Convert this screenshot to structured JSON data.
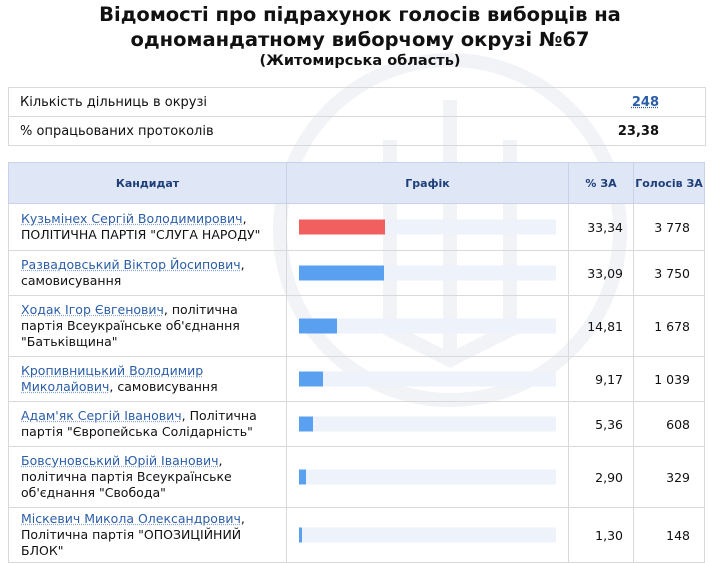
{
  "header": {
    "title": "Відомості про підрахунок голосів виборців на одномандатному виборчому окрузі №67",
    "region": "(Житомирська область)"
  },
  "summary": {
    "stations_label": "Кількість дільниць в окрузі",
    "stations_value": "248",
    "processed_label": "% опрацьованих протоколів",
    "processed_value": "23,38"
  },
  "table": {
    "headers": {
      "candidate": "Кандидат",
      "graph": "Графік",
      "percent": "% ЗА",
      "votes": "Голосів ЗА"
    },
    "rows": [
      {
        "name": "Кузьмінех Сергій Володимирович",
        "party": ", ПОЛІТИЧНА ПАРТІЯ \"СЛУГА НАРОДУ\"",
        "percent": "33,34",
        "votes": "3 778"
      },
      {
        "name": "Развадовський Віктор Йосипович",
        "party": ", самовисування",
        "percent": "33,09",
        "votes": "3 750"
      },
      {
        "name": "Ходак Ігор Євгенович",
        "party": ", політична партія Всеукраїнське об'єднання \"Батьківщина\"",
        "percent": "14,81",
        "votes": "1 678"
      },
      {
        "name": "Кропивницький Володимир Миколайович",
        "party": ", самовисування",
        "percent": "9,17",
        "votes": "1 039"
      },
      {
        "name": "Адам'як Сергій Іванович",
        "party": ", Політична партія \"Європейська Солідарність\"",
        "percent": "5,36",
        "votes": "608"
      },
      {
        "name": "Бовсуновський Юрій Іванович",
        "party": ", політична партія Всеукраїнське об'єднання \"Свобода\"",
        "percent": "2,90",
        "votes": "329"
      },
      {
        "name": "Міскевич Микола Олександрович",
        "party": ", Політична партія \"ОПОЗИЦІЙНИЙ БЛОК\"",
        "percent": "1,30",
        "votes": "148"
      }
    ],
    "bar_fractions": [
      0.3334,
      0.3309,
      0.1481,
      0.0917,
      0.0536,
      0.029,
      0.013
    ],
    "lead_color": "#f25f5f",
    "bar_color": "#5aa0f0"
  }
}
